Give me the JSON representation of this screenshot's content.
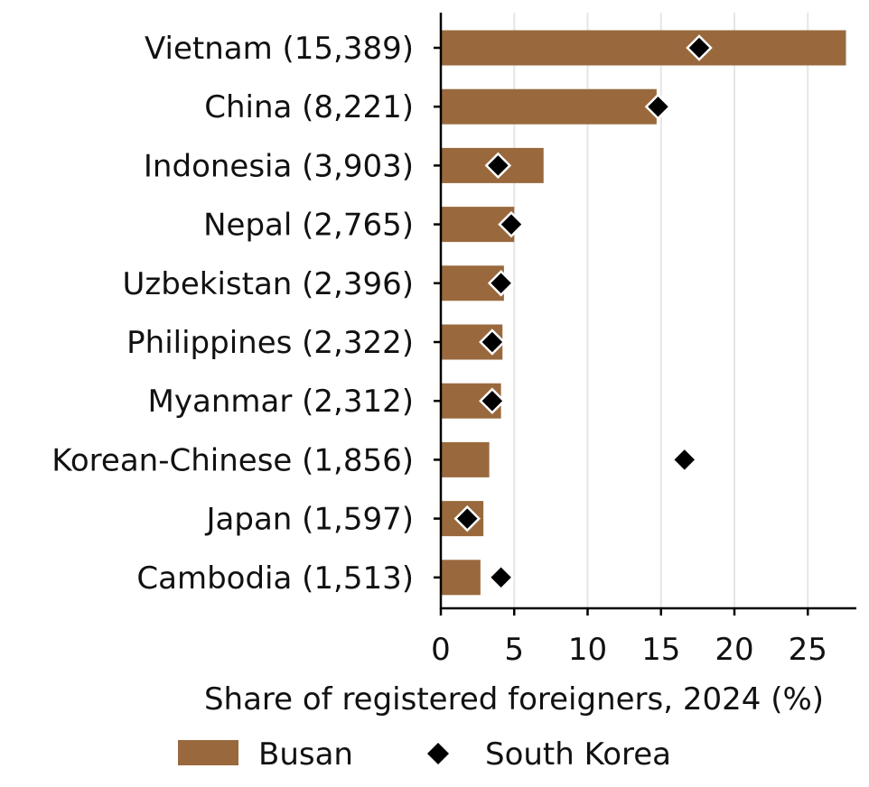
{
  "chart_data": {
    "type": "bar",
    "orientation": "horizontal",
    "categories": [
      "Vietnam (15,389)",
      "China (8,221)",
      "Indonesia (3,903)",
      "Nepal (2,765)",
      "Uzbekistan (2,396)",
      "Philippines (2,322)",
      "Myanmar (2,312)",
      "Korean-Chinese (1,856)",
      "Japan (1,597)",
      "Cambodia (1,513)"
    ],
    "series": [
      {
        "name": "Busan",
        "mark": "bar",
        "color": "#99693d",
        "values": [
          27.6,
          14.7,
          7.0,
          5.0,
          4.3,
          4.2,
          4.1,
          3.3,
          2.9,
          2.7
        ]
      },
      {
        "name": "South Korea",
        "mark": "diamond",
        "color": "#000000",
        "values": [
          17.6,
          14.8,
          3.9,
          4.8,
          4.1,
          3.5,
          3.5,
          16.6,
          1.8,
          4.1
        ]
      }
    ],
    "xlabel": "Share of registered foreigners, 2024 (%)",
    "ylabel": "",
    "xlim": [
      0,
      28.5
    ],
    "xticks": [
      0,
      5,
      10,
      15,
      20,
      25
    ],
    "grid": "vertical",
    "legend_placement": "bottom"
  }
}
